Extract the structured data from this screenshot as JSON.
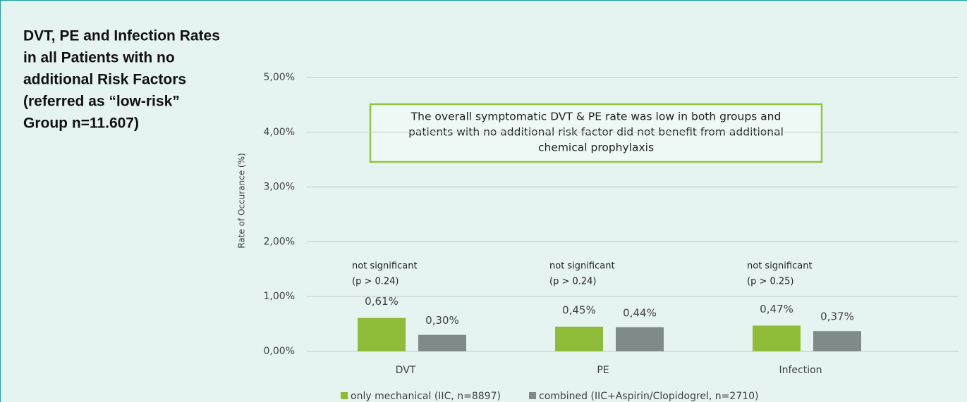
{
  "chart_data": {
    "type": "bar",
    "title": [
      "DVT, PE and Infection Rates",
      "in all Patients with no",
      "additional Risk Factors",
      "(referred as “low-risk”",
      "Group n=11.607)"
    ],
    "y_label": "Rate of Occurance (%)",
    "annotation": [
      "The overall symptomatic DVT & PE rate was low in both groups and",
      "patients with no additional risk factor did not benefit from additional",
      "chemical prophylaxis"
    ],
    "group_notes": [
      [
        "not significant",
        "(p > 0.24)"
      ],
      [
        "not significant",
        "(p > 0.24)"
      ],
      [
        "not significant",
        "(p > 0.25)"
      ]
    ],
    "categories": [
      "DVT",
      "PE",
      "Infection"
    ],
    "series": [
      {
        "name": "only mechanical (IIC, n=8897)",
        "color": "#8fbc38",
        "values": [
          0.61,
          0.45,
          0.47
        ],
        "value_labels": [
          "0,61%",
          "0,45%",
          "0,47%"
        ]
      },
      {
        "name": "combined (IIC+Aspirin/Clopidogrel, n=2710)",
        "color": "#7f8b8b",
        "values": [
          0.3,
          0.44,
          0.37
        ],
        "value_labels": [
          "0,30%",
          "0,44%",
          "0,37%"
        ]
      }
    ],
    "ylim": [
      0,
      5
    ],
    "yticks": [
      {
        "value": 0,
        "label": "0,00%"
      },
      {
        "value": 1,
        "label": "1,00%"
      },
      {
        "value": 2,
        "label": "2,00%"
      },
      {
        "value": 3,
        "label": "3,00%"
      },
      {
        "value": 4,
        "label": "4,00%"
      },
      {
        "value": 5,
        "label": "5,00%"
      }
    ],
    "grid": true,
    "legend": "bottom"
  }
}
